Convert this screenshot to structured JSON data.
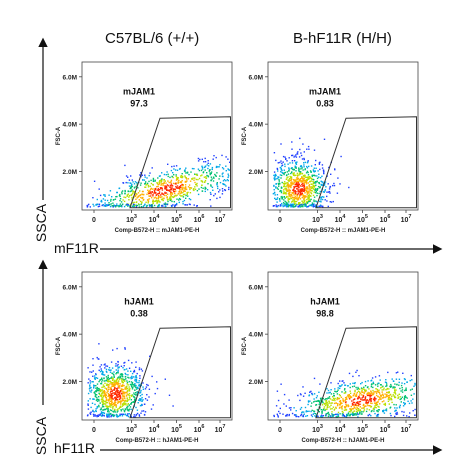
{
  "columns": [
    "C57BL/6 (+/+)",
    "B-hF11R (H/H)"
  ],
  "rows": [
    {
      "y_axis_label": "SSCA",
      "x_axis_label": "mF11R"
    },
    {
      "y_axis_label": "SSCA",
      "x_axis_label": "hF11R"
    }
  ],
  "chart_data": [
    {
      "type": "scatter",
      "column": "C57BL/6 (+/+)",
      "gate_name": "mJAM1",
      "gate_value": "97.3",
      "xlabel": "Comp-B572-H :: mJAM1-PE-H",
      "ylabel": "FSC-A",
      "y_ticks": [
        "6.0M",
        "4.0M",
        "2.0M"
      ],
      "x_ticks": [
        "0",
        "10^3",
        "10^4",
        "10^5",
        "10^6",
        "10^7"
      ]
    },
    {
      "type": "scatter",
      "column": "B-hF11R (H/H)",
      "gate_name": "mJAM1",
      "gate_value": "0.83",
      "xlabel": "Comp-B572-H :: mJAM1-PE-H",
      "ylabel": "FSC-A",
      "y_ticks": [
        "6.0M",
        "4.0M",
        "2.0M"
      ],
      "x_ticks": [
        "0",
        "10^3",
        "10^4",
        "10^5",
        "10^6",
        "10^7"
      ]
    },
    {
      "type": "scatter",
      "column": "C57BL/6 (+/+)",
      "gate_name": "hJAM1",
      "gate_value": "0.38",
      "xlabel": "Comp-B572-H :: hJAM1-PE-H",
      "ylabel": "FSC-A",
      "y_ticks": [
        "6.0M",
        "4.0M",
        "2.0M"
      ],
      "x_ticks": [
        "0",
        "10^3",
        "10^4",
        "10^5",
        "10^6",
        "10^7"
      ]
    },
    {
      "type": "scatter",
      "column": "B-hF11R (H/H)",
      "gate_name": "hJAM1",
      "gate_value": "98.8",
      "xlabel": "Comp-B572-H :: hJAM1-PE-H",
      "ylabel": "FSC-A",
      "y_ticks": [
        "6.0M",
        "4.0M",
        "2.0M"
      ],
      "x_ticks": [
        "0",
        "10^3",
        "10^4",
        "10^5",
        "10^6",
        "10^7"
      ]
    }
  ]
}
